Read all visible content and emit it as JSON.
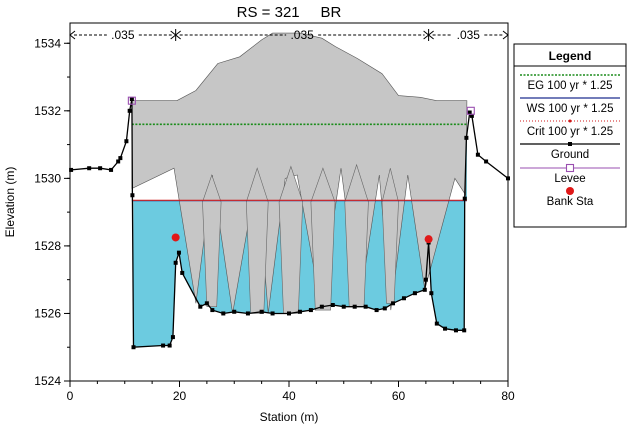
{
  "chart_data": {
    "type": "line",
    "title": "RS = 321     BR",
    "xlabel": "Station (m)",
    "ylabel": "Elevation (m)",
    "xlim": [
      0,
      80
    ],
    "ylim": [
      1524,
      1534.6
    ],
    "x_ticks": [
      "0",
      "20",
      "40",
      "60",
      "80"
    ],
    "y_ticks": [
      "1524",
      "1526",
      "1528",
      "1530",
      "1532",
      "1534"
    ],
    "manning": [
      {
        "label": ".035",
        "from": 0,
        "to": 19.3
      },
      {
        "label": ".035",
        "from": 19.3,
        "to": 65.5
      },
      {
        "label": ".035",
        "from": 65.5,
        "to": 80
      }
    ],
    "legend": {
      "title": "Legend",
      "entries": [
        "EG 100 yr * 1.25",
        "WS 100 yr * 1.25",
        "Crit 100 yr * 1.25",
        "Ground",
        "Levee",
        "Bank Sta"
      ],
      "colors": [
        "#1a8c1a",
        "#1f2d8f",
        "#d01818",
        "#000000",
        "#9a4fb0",
        "#e01818"
      ]
    },
    "colors": {
      "water": "#6ccbe0",
      "bridge": "#c6c6c6",
      "eg": "#1a8c1a",
      "ws": "#1f2d8f",
      "crit": "#d01818",
      "ground": "#000000",
      "levee": "#9a4fb0",
      "bank": "#e01818"
    },
    "eg_elevation": 1531.6,
    "ws_elevation": 1529.35,
    "crit_elevation": 1529.35,
    "water_extent": [
      11.3,
      72.5
    ],
    "ground": [
      [
        0.2,
        1530.25
      ],
      [
        3.5,
        1530.3
      ],
      [
        5.5,
        1530.3
      ],
      [
        7.5,
        1530.25
      ],
      [
        8.8,
        1530.5
      ],
      [
        9.2,
        1530.6
      ],
      [
        10.3,
        1531.1
      ],
      [
        10.9,
        1532.0
      ],
      [
        11.3,
        1532.35
      ],
      [
        11.4,
        1529.5
      ],
      [
        11.6,
        1525.0
      ],
      [
        17.0,
        1525.05
      ],
      [
        18.2,
        1525.05
      ],
      [
        18.8,
        1525.3
      ],
      [
        19.3,
        1527.5
      ],
      [
        19.9,
        1527.8
      ],
      [
        20.5,
        1527.2
      ],
      [
        23.8,
        1526.2
      ],
      [
        25.0,
        1526.3
      ],
      [
        26.0,
        1526.1
      ],
      [
        28.0,
        1526.0
      ],
      [
        30.0,
        1526.05
      ],
      [
        32.5,
        1526.0
      ],
      [
        35.0,
        1526.05
      ],
      [
        37.0,
        1526.0
      ],
      [
        40.0,
        1526.0
      ],
      [
        42.0,
        1526.05
      ],
      [
        44.0,
        1526.1
      ],
      [
        46.0,
        1526.2
      ],
      [
        48.0,
        1526.25
      ],
      [
        50.0,
        1526.2
      ],
      [
        52.0,
        1526.2
      ],
      [
        54.0,
        1526.2
      ],
      [
        56.0,
        1526.1
      ],
      [
        57.5,
        1526.15
      ],
      [
        59.0,
        1526.3
      ],
      [
        61.0,
        1526.45
      ],
      [
        63.0,
        1526.6
      ],
      [
        64.8,
        1526.7
      ],
      [
        65.0,
        1527.0
      ],
      [
        65.5,
        1528.1
      ],
      [
        66.0,
        1526.6
      ],
      [
        67.0,
        1525.7
      ],
      [
        68.5,
        1525.55
      ],
      [
        70.5,
        1525.5
      ],
      [
        72.0,
        1525.5
      ],
      [
        72.1,
        1529.4
      ],
      [
        72.4,
        1531.2
      ],
      [
        73.0,
        1531.95
      ],
      [
        73.4,
        1531.85
      ],
      [
        74.5,
        1530.7
      ],
      [
        76.0,
        1530.5
      ],
      [
        80.0,
        1530.0
      ]
    ],
    "levees": [
      [
        11.3,
        1532.3
      ],
      [
        73.2,
        1532.0
      ]
    ],
    "bank_stations": [
      [
        19.3,
        1528.25
      ],
      [
        65.5,
        1528.2
      ]
    ],
    "bridge_deck": [
      [
        11.3,
        1532.3
      ],
      [
        14.0,
        1532.3
      ],
      [
        19.5,
        1532.3
      ],
      [
        23.0,
        1532.6
      ],
      [
        27.0,
        1533.4
      ],
      [
        31.0,
        1533.6
      ],
      [
        35.0,
        1534.1
      ],
      [
        37.0,
        1534.3
      ],
      [
        42.0,
        1534.3
      ],
      [
        46.0,
        1534.15
      ],
      [
        48.5,
        1533.9
      ],
      [
        52.5,
        1533.55
      ],
      [
        57.0,
        1533.1
      ],
      [
        60.0,
        1532.45
      ],
      [
        64.0,
        1532.4
      ],
      [
        67.0,
        1532.3
      ],
      [
        72.5,
        1532.3
      ]
    ],
    "bridge_low_chord": [
      [
        11.3,
        1529.7
      ],
      [
        19.0,
        1530.3
      ],
      [
        23.0,
        1526.3
      ],
      [
        26.0,
        1530.1
      ],
      [
        29.7,
        1526.0
      ],
      [
        34.2,
        1530.15
      ],
      [
        36.2,
        1526.0
      ],
      [
        39.3,
        1530.0
      ],
      [
        41.5,
        1530.1
      ],
      [
        45.8,
        1526.2
      ],
      [
        49.5,
        1530.3
      ],
      [
        52.8,
        1526.2
      ],
      [
        56.5,
        1530.1
      ],
      [
        58.6,
        1526.1
      ],
      [
        61.7,
        1530.1
      ],
      [
        64.8,
        1526.7
      ],
      [
        70.3,
        1530.0
      ],
      [
        72.3,
        1529.5
      ]
    ],
    "piers": [
      {
        "x1": 24.2,
        "x2": 27.6,
        "y_top": 1529.3,
        "apex": 1530.1,
        "y_bot": 1526.2
      },
      {
        "x1": 32.2,
        "x2": 36.2,
        "y_top": 1529.3,
        "apex": 1530.3,
        "y_bot": 1526.0
      },
      {
        "x1": 38.2,
        "x2": 42.5,
        "y_top": 1529.3,
        "apex": 1530.35,
        "y_bot": 1526.0
      },
      {
        "x1": 44.0,
        "x2": 48.4,
        "y_top": 1529.3,
        "apex": 1530.3,
        "y_bot": 1526.1
      },
      {
        "x1": 50.2,
        "x2": 54.5,
        "y_top": 1529.3,
        "apex": 1530.4,
        "y_bot": 1526.2
      },
      {
        "x1": 57.0,
        "x2": 60.0,
        "y_top": 1529.3,
        "apex": 1530.3,
        "y_bot": 1526.3
      }
    ]
  }
}
